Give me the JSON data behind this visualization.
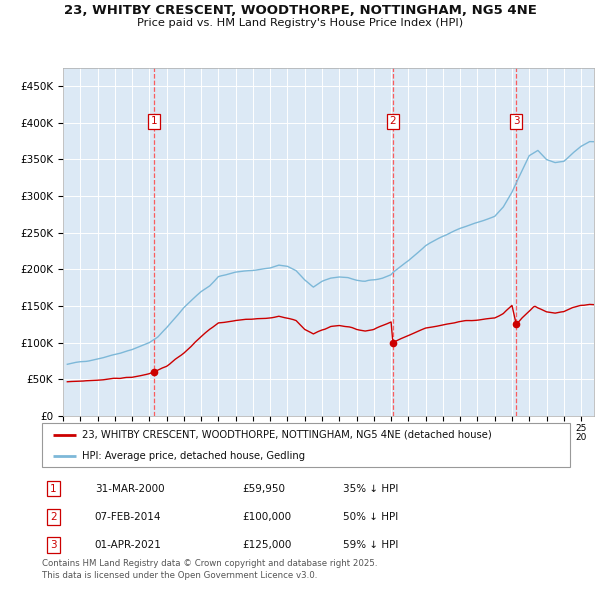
{
  "title_line1": "23, WHITBY CRESCENT, WOODTHORPE, NOTTINGHAM, NG5 4NE",
  "title_line2": "Price paid vs. HM Land Registry's House Price Index (HPI)",
  "plot_bg_color": "#dce9f5",
  "red_line_color": "#cc0000",
  "blue_line_color": "#7db8d8",
  "red_line_label": "23, WHITBY CRESCENT, WOODTHORPE, NOTTINGHAM, NG5 4NE (detached house)",
  "blue_line_label": "HPI: Average price, detached house, Gedling",
  "transactions": [
    {
      "num": 1,
      "date": "31-MAR-2000",
      "date_float": 2000.25,
      "price": 59950,
      "pct": "35% ↓ HPI"
    },
    {
      "num": 2,
      "date": "07-FEB-2014",
      "date_float": 2014.1,
      "price": 100000,
      "pct": "50% ↓ HPI"
    },
    {
      "num": 3,
      "date": "01-APR-2021",
      "date_float": 2021.25,
      "price": 125000,
      "pct": "59% ↓ HPI"
    }
  ],
  "copyright_text": "Contains HM Land Registry data © Crown copyright and database right 2025.\nThis data is licensed under the Open Government Licence v3.0.",
  "ylim": [
    0,
    475000
  ],
  "yticks": [
    0,
    50000,
    100000,
    150000,
    200000,
    250000,
    300000,
    350000,
    400000,
    450000
  ],
  "ytick_labels": [
    "£0",
    "£50K",
    "£100K",
    "£150K",
    "£200K",
    "£250K",
    "£300K",
    "£350K",
    "£400K",
    "£450K"
  ],
  "xlim_start": 1995.25,
  "xlim_end": 2025.75,
  "hpi_anchors": [
    [
      1995.25,
      70000
    ],
    [
      1996.0,
      74000
    ],
    [
      1997.0,
      78000
    ],
    [
      1998.0,
      84000
    ],
    [
      1999.0,
      91000
    ],
    [
      2000.0,
      100000
    ],
    [
      2000.5,
      108000
    ],
    [
      2001.0,
      120000
    ],
    [
      2002.0,
      148000
    ],
    [
      2003.0,
      170000
    ],
    [
      2003.5,
      178000
    ],
    [
      2004.0,
      190000
    ],
    [
      2005.0,
      196000
    ],
    [
      2006.0,
      199000
    ],
    [
      2007.0,
      202000
    ],
    [
      2007.5,
      206000
    ],
    [
      2008.0,
      204000
    ],
    [
      2008.5,
      198000
    ],
    [
      2009.0,
      185000
    ],
    [
      2009.5,
      176000
    ],
    [
      2010.0,
      183000
    ],
    [
      2010.5,
      188000
    ],
    [
      2011.0,
      190000
    ],
    [
      2011.5,
      189000
    ],
    [
      2012.0,
      185000
    ],
    [
      2012.5,
      183000
    ],
    [
      2013.0,
      185000
    ],
    [
      2013.5,
      188000
    ],
    [
      2014.0,
      193000
    ],
    [
      2014.1,
      196000
    ],
    [
      2015.0,
      212000
    ],
    [
      2016.0,
      232000
    ],
    [
      2017.0,
      246000
    ],
    [
      2018.0,
      256000
    ],
    [
      2019.0,
      264000
    ],
    [
      2020.0,
      272000
    ],
    [
      2020.5,
      285000
    ],
    [
      2021.0,
      305000
    ],
    [
      2021.5,
      330000
    ],
    [
      2022.0,
      355000
    ],
    [
      2022.5,
      362000
    ],
    [
      2023.0,
      350000
    ],
    [
      2023.5,
      346000
    ],
    [
      2024.0,
      348000
    ],
    [
      2024.5,
      358000
    ],
    [
      2025.0,
      368000
    ],
    [
      2025.5,
      374000
    ]
  ],
  "red_anchors": [
    [
      1995.25,
      46000
    ],
    [
      1996.0,
      47500
    ],
    [
      1997.0,
      49000
    ],
    [
      1998.0,
      51000
    ],
    [
      1999.0,
      53000
    ],
    [
      2000.0,
      57000
    ],
    [
      2000.25,
      59950
    ],
    [
      2001.0,
      68000
    ],
    [
      2002.0,
      86000
    ],
    [
      2003.0,
      108000
    ],
    [
      2003.5,
      118000
    ],
    [
      2004.0,
      126000
    ],
    [
      2005.0,
      130000
    ],
    [
      2006.0,
      132000
    ],
    [
      2007.0,
      134000
    ],
    [
      2007.5,
      136000
    ],
    [
      2008.0,
      134000
    ],
    [
      2008.5,
      130000
    ],
    [
      2009.0,
      118000
    ],
    [
      2009.5,
      112000
    ],
    [
      2010.0,
      118000
    ],
    [
      2010.5,
      122000
    ],
    [
      2011.0,
      124000
    ],
    [
      2011.5,
      122000
    ],
    [
      2012.0,
      118000
    ],
    [
      2012.5,
      116000
    ],
    [
      2013.0,
      118000
    ],
    [
      2013.5,
      123000
    ],
    [
      2014.0,
      128000
    ],
    [
      2014.1,
      100000
    ],
    [
      2015.0,
      110000
    ],
    [
      2016.0,
      120000
    ],
    [
      2017.0,
      124000
    ],
    [
      2018.0,
      128000
    ],
    [
      2019.0,
      131000
    ],
    [
      2020.0,
      134000
    ],
    [
      2020.5,
      140000
    ],
    [
      2021.0,
      151000
    ],
    [
      2021.25,
      125000
    ],
    [
      2021.5,
      132000
    ],
    [
      2022.0,
      143000
    ],
    [
      2022.3,
      150000
    ],
    [
      2022.5,
      147000
    ],
    [
      2023.0,
      142000
    ],
    [
      2023.5,
      140000
    ],
    [
      2024.0,
      142000
    ],
    [
      2024.5,
      148000
    ],
    [
      2025.0,
      151000
    ],
    [
      2025.5,
      152000
    ]
  ]
}
